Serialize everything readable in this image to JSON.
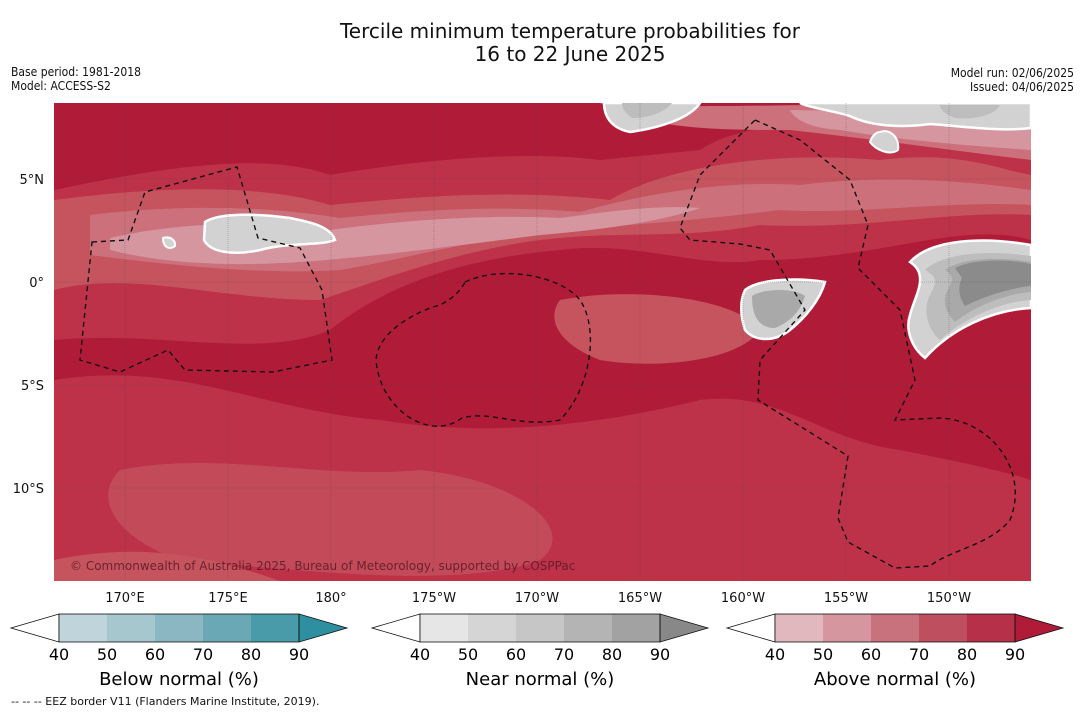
{
  "title_line1": "Tercile minimum temperature probabilities for",
  "title_line2": "16 to 22 June 2025",
  "base_period": "Base period: 1981-2018",
  "model": "Model: ACCESS-S2",
  "model_run": "Model run: 02/06/2025",
  "issued": "Issued: 04/06/2025",
  "lat_labels": [
    "5°N",
    "0°",
    "5°S",
    "10°S"
  ],
  "lon_labels": [
    "170°E",
    "175°E",
    "180°",
    "175°W",
    "170°W",
    "165°W",
    "160°W",
    "155°W",
    "150°W"
  ],
  "copyright": "© Commonwealth of Australia 2025, Bureau of Meteorology, supported by COSPPac",
  "colorbars": [
    {
      "title": "Below normal (%)",
      "ticks": [
        "40",
        "50",
        "60",
        "70",
        "80",
        "90"
      ],
      "colors": [
        "#ffffff",
        "#bfd4db",
        "#a7c7ce",
        "#8bb7c2",
        "#6aa8b6",
        "#4a9ba9",
        "#2e8fa0"
      ]
    },
    {
      "title": "Near normal (%)",
      "ticks": [
        "40",
        "50",
        "60",
        "70",
        "80",
        "90"
      ],
      "colors": [
        "#ffffff",
        "#e6e6e6",
        "#d5d5d5",
        "#c6c6c6",
        "#b4b4b4",
        "#a2a2a2",
        "#888888"
      ]
    },
    {
      "title": "Above normal (%)",
      "ticks": [
        "40",
        "50",
        "60",
        "70",
        "80",
        "90"
      ],
      "colors": [
        "#ffffff",
        "#e2b8bf",
        "#d6969f",
        "#c8727e",
        "#bd4f5f",
        "#b53048",
        "#b01c38"
      ]
    }
  ],
  "footnote": "--  --  -- EEZ border V11 (Flanders Marine Institute, 2019).",
  "map_colors": {
    "a90": "#b01c38",
    "a80": "#bd3248",
    "a70": "#c6545f",
    "a60": "#cc717b",
    "a50": "#d6969f",
    "n60": "#d2d2d2",
    "n70": "#bdbdbd",
    "n80": "#a9a9a9",
    "n90": "#8b8b8b"
  }
}
